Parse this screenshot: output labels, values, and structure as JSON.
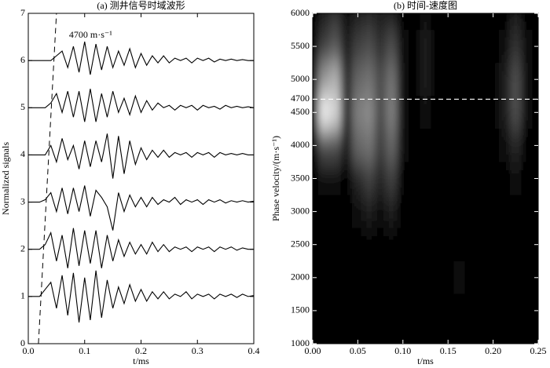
{
  "chart_data": [
    {
      "type": "line",
      "title": "(a) 测井信号时域波形",
      "xlabel": "t/ms",
      "ylabel": "Normalized signals",
      "xlim": [
        0,
        0.4
      ],
      "ylim": [
        0,
        7
      ],
      "xticks": [
        {
          "value": 0,
          "label": "0.0"
        },
        0.1,
        0.2,
        0.3,
        0.4
      ],
      "yticks": [
        0,
        1,
        2,
        3,
        4,
        5,
        6,
        7
      ],
      "annotation": {
        "text": "4700 m·s⁻¹",
        "x": [
          0.018,
          0.05
        ],
        "y": [
          0,
          7
        ]
      },
      "x": [
        0,
        0.01,
        0.02,
        0.03,
        0.04,
        0.05,
        0.06,
        0.07,
        0.08,
        0.09,
        0.1,
        0.11,
        0.12,
        0.13,
        0.14,
        0.15,
        0.16,
        0.17,
        0.18,
        0.19,
        0.2,
        0.21,
        0.22,
        0.23,
        0.24,
        0.25,
        0.26,
        0.27,
        0.28,
        0.29,
        0.3,
        0.31,
        0.32,
        0.33,
        0.34,
        0.35,
        0.36,
        0.37,
        0.38,
        0.39,
        0.4
      ],
      "series": [
        {
          "color": "#000000",
          "values": [
            1,
            1,
            1.0,
            1.15,
            1.3,
            0.75,
            1.45,
            0.6,
            1.5,
            0.45,
            1.4,
            0.5,
            1.55,
            0.55,
            1.35,
            0.75,
            1.2,
            0.85,
            1.25,
            0.9,
            1.15,
            0.9,
            1.1,
            0.95,
            1.1,
            0.95,
            1.05,
            1.0,
            1.1,
            0.95,
            1.05,
            1.0,
            1.05,
            0.95,
            1.05,
            1.0,
            1.05,
            0.98,
            1.05,
            1.0,
            1.02
          ]
        },
        {
          "color": "#000000",
          "values": [
            2,
            2,
            2,
            2.1,
            2.35,
            1.75,
            2.3,
            1.6,
            2.45,
            1.65,
            2.4,
            1.7,
            2.4,
            1.6,
            2.3,
            1.75,
            2.2,
            1.85,
            2.15,
            1.9,
            2.1,
            1.9,
            2.15,
            1.95,
            2.1,
            1.95,
            2.05,
            2.0,
            2.05,
            1.95,
            2.05,
            2.0,
            2.05,
            1.95,
            2.05,
            2.0,
            2.05,
            1.98,
            2.03,
            2.0,
            2.0
          ]
        },
        {
          "color": "#000000",
          "values": [
            3,
            3,
            3,
            3.05,
            3.2,
            2.8,
            3.3,
            2.75,
            3.3,
            2.8,
            3.35,
            2.7,
            3.25,
            3.1,
            2.9,
            2.4,
            3.2,
            2.8,
            3.15,
            2.9,
            3.1,
            2.9,
            3.1,
            2.95,
            3.05,
            3.0,
            3.1,
            2.95,
            3.05,
            3.0,
            3.05,
            2.95,
            3.05,
            3.0,
            3.05,
            2.98,
            3.03,
            3.0,
            3.03,
            3.0,
            3.02
          ]
        },
        {
          "color": "#000000",
          "values": [
            4,
            4,
            4,
            4,
            4.2,
            3.85,
            4.35,
            3.9,
            4.2,
            3.7,
            4.3,
            3.75,
            4.3,
            3.85,
            4.45,
            3.5,
            4.4,
            3.6,
            4.3,
            3.8,
            4.15,
            3.9,
            4.1,
            3.95,
            4.1,
            3.95,
            4.05,
            4.0,
            4.05,
            3.95,
            4.05,
            4.0,
            4.05,
            3.95,
            4.05,
            4.0,
            4.03,
            4.0,
            4.03,
            4.0,
            4.0
          ]
        },
        {
          "color": "#000000",
          "values": [
            5,
            5,
            5,
            5,
            5.1,
            5.3,
            4.9,
            5.35,
            4.8,
            5.35,
            4.7,
            5.4,
            4.7,
            5.3,
            4.8,
            5.35,
            4.9,
            5.2,
            4.85,
            5.25,
            4.9,
            5.15,
            4.95,
            5.1,
            5.0,
            5.05,
            4.95,
            5.05,
            5.0,
            5.05,
            4.95,
            5.05,
            5.0,
            5.03,
            4.97,
            5.05,
            5.0,
            5.03,
            5.0,
            5.02,
            5.0
          ]
        },
        {
          "color": "#000000",
          "values": [
            6,
            6,
            6,
            6,
            6,
            6.1,
            6.2,
            5.85,
            6.3,
            5.75,
            6.4,
            5.7,
            6.35,
            5.8,
            6.3,
            5.85,
            6.2,
            5.9,
            6.25,
            5.85,
            6.15,
            5.9,
            6.1,
            5.95,
            6.1,
            5.95,
            6.05,
            6.0,
            6.05,
            5.95,
            6.05,
            6.0,
            6.05,
            5.97,
            6.03,
            6.0,
            6.03,
            6.0,
            6.02,
            6.0,
            6.0
          ]
        }
      ]
    },
    {
      "type": "heatmap",
      "title": "(b) 时间-速度图",
      "xlabel": "t/ms",
      "ylabel": "Phase velocity/(m·s⁻¹)",
      "xlim": [
        0,
        0.25
      ],
      "ylim": [
        1000,
        6000
      ],
      "xticks": [
        {
          "value": 0,
          "label": "0.00"
        },
        {
          "value": 0.05,
          "label": "0.05"
        },
        {
          "value": 0.1,
          "label": "0.10"
        },
        {
          "value": 0.15,
          "label": "0.15"
        },
        {
          "value": 0.2,
          "label": "0.20"
        },
        {
          "value": 0.25,
          "label": "0.25"
        }
      ],
      "yticks": [
        1000,
        1500,
        2000,
        2500,
        3000,
        3500,
        4000,
        4500,
        4700,
        5000,
        5500,
        6000
      ],
      "reference_line": 4700,
      "x": [
        0,
        0.0125,
        0.025,
        0.0375,
        0.05,
        0.0625,
        0.075,
        0.0875,
        0.1,
        0.1125,
        0.125,
        0.1375,
        0.15,
        0.1625,
        0.175,
        0.1875,
        0.2,
        0.2125,
        0.225,
        0.2375,
        0.25
      ],
      "y": [
        6000,
        5500,
        5000,
        4500,
        4000,
        3500,
        3000,
        2500,
        2000,
        1500,
        1000
      ],
      "z": [
        [
          0,
          0.1,
          0.2,
          0.05,
          0.1,
          0.15,
          0.1,
          0.1,
          0,
          0,
          0.05,
          0,
          0,
          0,
          0,
          0,
          0,
          0,
          0.1,
          0,
          0
        ],
        [
          0,
          0.25,
          0.35,
          0.1,
          0.25,
          0.3,
          0.2,
          0.3,
          0.05,
          0,
          0.1,
          0,
          0,
          0,
          0,
          0,
          0,
          0.05,
          0.2,
          0.05,
          0
        ],
        [
          0,
          0.6,
          0.7,
          0.15,
          0.4,
          0.45,
          0.3,
          0.45,
          0.05,
          0,
          0.1,
          0,
          0,
          0,
          0,
          0,
          0,
          0.1,
          0.3,
          0.05,
          0
        ],
        [
          0,
          0.95,
          0.85,
          0.15,
          0.5,
          0.55,
          0.3,
          0.5,
          0.05,
          0,
          0.05,
          0,
          0,
          0,
          0,
          0,
          0,
          0.1,
          0.3,
          0.05,
          0
        ],
        [
          0,
          0.3,
          0.3,
          0.1,
          0.4,
          0.45,
          0.25,
          0.4,
          0.05,
          0,
          0,
          0,
          0,
          0,
          0,
          0,
          0,
          0.05,
          0.15,
          0,
          0
        ],
        [
          0,
          0.05,
          0.05,
          0,
          0.15,
          0.25,
          0.15,
          0.25,
          0,
          0,
          0,
          0,
          0,
          0,
          0,
          0,
          0,
          0,
          0.05,
          0,
          0
        ],
        [
          0,
          0,
          0,
          0,
          0.05,
          0.1,
          0.05,
          0.1,
          0,
          0,
          0,
          0,
          0,
          0,
          0,
          0,
          0,
          0,
          0,
          0,
          0
        ],
        [
          0,
          0,
          0,
          0,
          0,
          0,
          0,
          0,
          0,
          0,
          0,
          0,
          0,
          0,
          0,
          0,
          0,
          0,
          0,
          0,
          0
        ],
        [
          0,
          0,
          0,
          0,
          0,
          0,
          0,
          0,
          0,
          0,
          0,
          0,
          0,
          0.05,
          0,
          0,
          0,
          0,
          0,
          0,
          0
        ],
        [
          0,
          0,
          0,
          0,
          0,
          0,
          0,
          0,
          0,
          0,
          0,
          0,
          0,
          0,
          0,
          0,
          0,
          0,
          0,
          0,
          0
        ],
        [
          0,
          0,
          0,
          0,
          0,
          0,
          0,
          0,
          0,
          0,
          0,
          0,
          0,
          0,
          0,
          0,
          0,
          0,
          0,
          0,
          0
        ]
      ]
    }
  ]
}
